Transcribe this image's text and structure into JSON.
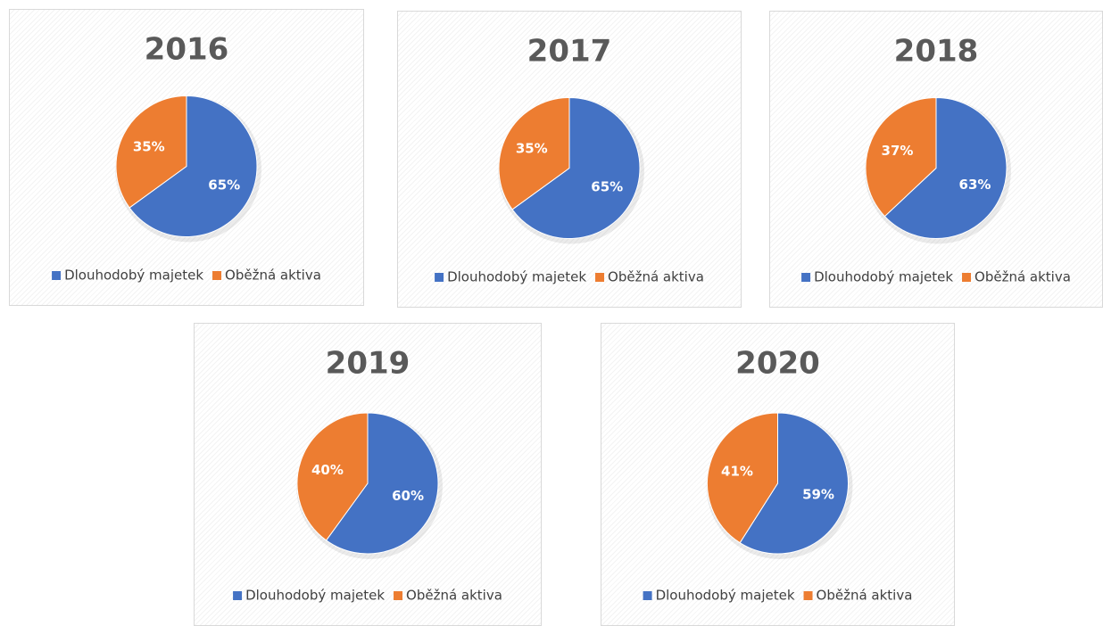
{
  "chart_data": [
    {
      "type": "pie",
      "title": "2016",
      "categories": [
        "Dlouhodobý majetek",
        "Oběžná aktiva"
      ],
      "values": [
        65,
        35
      ],
      "value_labels": [
        "65%",
        "35%"
      ],
      "colors": [
        "#4472c4",
        "#ed7d31"
      ],
      "legend": "bottom"
    },
    {
      "type": "pie",
      "title": "2017",
      "categories": [
        "Dlouhodobý majetek",
        "Oběžná aktiva"
      ],
      "values": [
        65,
        35
      ],
      "value_labels": [
        "65%",
        "35%"
      ],
      "colors": [
        "#4472c4",
        "#ed7d31"
      ],
      "legend": "bottom"
    },
    {
      "type": "pie",
      "title": "2018",
      "categories": [
        "Dlouhodobý majetek",
        "Oběžná aktiva"
      ],
      "values": [
        63,
        37
      ],
      "value_labels": [
        "63%",
        "37%"
      ],
      "colors": [
        "#4472c4",
        "#ed7d31"
      ],
      "legend": "bottom"
    },
    {
      "type": "pie",
      "title": "2019",
      "categories": [
        "Dlouhodobý majetek",
        "Oběžná aktiva"
      ],
      "values": [
        60,
        40
      ],
      "value_labels": [
        "60%",
        "40%"
      ],
      "colors": [
        "#4472c4",
        "#ed7d31"
      ],
      "legend": "bottom"
    },
    {
      "type": "pie",
      "title": "2020",
      "categories": [
        "Dlouhodobý majetek",
        "Oběžná aktiva"
      ],
      "values": [
        59,
        41
      ],
      "value_labels": [
        "59%",
        "41%"
      ],
      "colors": [
        "#4472c4",
        "#ed7d31"
      ],
      "legend": "bottom"
    }
  ]
}
